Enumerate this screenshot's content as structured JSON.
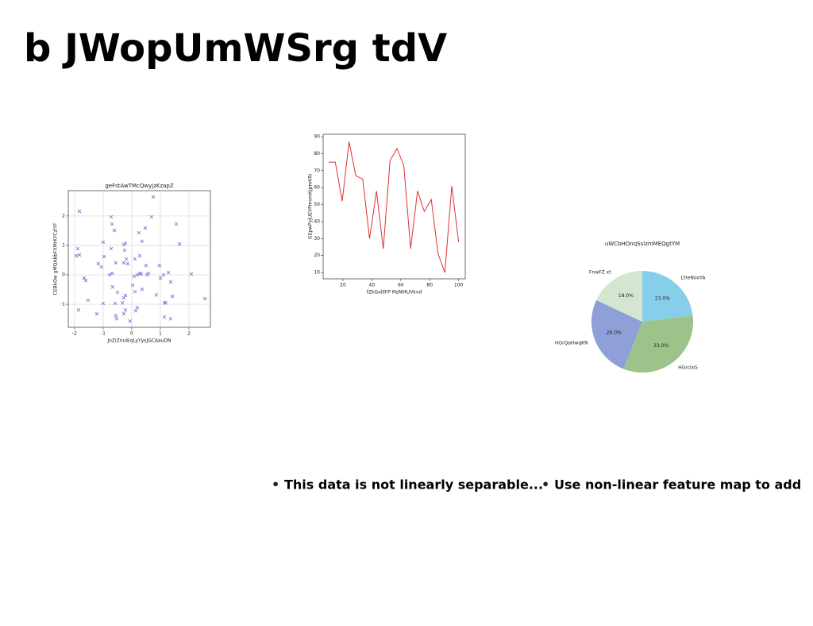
{
  "title": "b JWopUmWSrg tdV",
  "chart_data": [
    {
      "type": "scatter",
      "title": "geFstAwTMcQwyjzKzapZ",
      "x_label": "JnZiZnuiEqLyYysJGCAauDN",
      "y_label": "CEBkOw gMQAbbFXMrKYCzlYF",
      "color": "#6f6fd0",
      "grid": true,
      "xlim": [
        -2.22,
        2.75
      ],
      "ylim": [
        -1.78,
        2.86
      ],
      "xticks": [
        -2,
        -1,
        0,
        1,
        2
      ],
      "yticks": [
        -1,
        0,
        1,
        2
      ],
      "x": [
        -1.83,
        -1.89,
        -1.94,
        -1.83,
        -1.67,
        -1.61,
        -1.53,
        -1.86,
        -1.22,
        -1.0,
        -0.97,
        -1.17,
        -1.06,
        -1.0,
        -0.78,
        -0.69,
        -0.72,
        -0.69,
        -0.61,
        -0.72,
        -0.56,
        -0.67,
        -0.5,
        -0.58,
        -0.56,
        -0.53,
        -0.33,
        -0.28,
        -0.22,
        -0.28,
        -0.22,
        -0.28,
        -0.22,
        -0.25,
        -0.19,
        -0.28,
        -0.14,
        -0.06,
        0.03,
        0.11,
        0.08,
        0.11,
        0.19,
        0.28,
        0.28,
        0.25,
        0.36,
        0.19,
        0.14,
        0.36,
        0.33,
        0.47,
        0.5,
        0.53,
        0.58,
        0.75,
        0.69,
        0.86,
        0.97,
        1.0,
        1.11,
        1.14,
        1.19,
        1.14,
        1.28,
        1.36,
        1.42,
        1.36,
        1.56,
        1.67,
        2.08,
        2.56
      ],
      "y": [
        2.16,
        0.89,
        0.65,
        0.68,
        -0.11,
        -0.19,
        -0.86,
        -1.19,
        -1.32,
        1.11,
        0.62,
        0.38,
        0.27,
        -0.97,
        0,
        0.05,
        1.97,
        1.73,
        1.51,
        0.89,
        0.41,
        -0.41,
        -0.59,
        -0.97,
        -1.38,
        -1.49,
        -0.95,
        -0.78,
        -0.7,
        -1.32,
        -1.19,
        1.03,
        1.08,
        0.84,
        0.54,
        0.41,
        0.38,
        -1.57,
        -0.35,
        -0.57,
        -0.05,
        0.54,
        0,
        0.65,
        0.05,
        1.43,
        1.14,
        -1.11,
        -1.22,
        -0.49,
        0.03,
        1.59,
        0.32,
        0,
        0.05,
        2.65,
        1.97,
        -0.68,
        0.32,
        -0.11,
        0,
        -0.95,
        -0.95,
        -1.43,
        0.08,
        -0.24,
        -0.73,
        -1.49,
        1.73,
        1.05,
        0.03,
        -0.81
      ]
    },
    {
      "type": "line",
      "x_label": "fZkGxlIlFP MzNMUVkvd",
      "y_label": "GEpwPyjUEVPmvmKjpmKRi",
      "color": "#e03030",
      "grid": false,
      "xlim": [
        6.3,
        104.6
      ],
      "ylim": [
        6.3,
        91.4
      ],
      "xticks": [
        20,
        40,
        60,
        80,
        100
      ],
      "yticks": [
        10,
        20,
        30,
        40,
        50,
        60,
        70,
        80,
        90
      ],
      "x": [
        10,
        14.7,
        19.5,
        24.2,
        28.9,
        33.7,
        38.4,
        43.2,
        47.9,
        52.6,
        57.4,
        62.1,
        66.8,
        71.6,
        76.3,
        81.1,
        85.8,
        90.5,
        95.3,
        100
      ],
      "y": [
        75,
        75,
        52,
        87,
        67,
        65,
        30,
        58,
        24,
        76,
        83,
        73,
        24,
        58,
        46,
        53,
        21,
        10,
        61,
        28
      ]
    },
    {
      "type": "pie",
      "title": "uWCbHOnqSslzmMEQgtYM",
      "categories": [
        "LYIeNooYA",
        "HGrclxG",
        "HGrQaHwqKN",
        "FnwFZ xt"
      ],
      "values": [
        23,
        33,
        26,
        18
      ],
      "value_labels": [
        "23.0%",
        "33.0%",
        "26.0%",
        "18.0%"
      ],
      "colors": [
        "#87ceeb",
        "#9dc38a",
        "#8f9fd8",
        "#d4e6d0"
      ]
    }
  ],
  "bullets": [
    "This data is not linearly separable...",
    "Use non-linear feature map to add"
  ]
}
